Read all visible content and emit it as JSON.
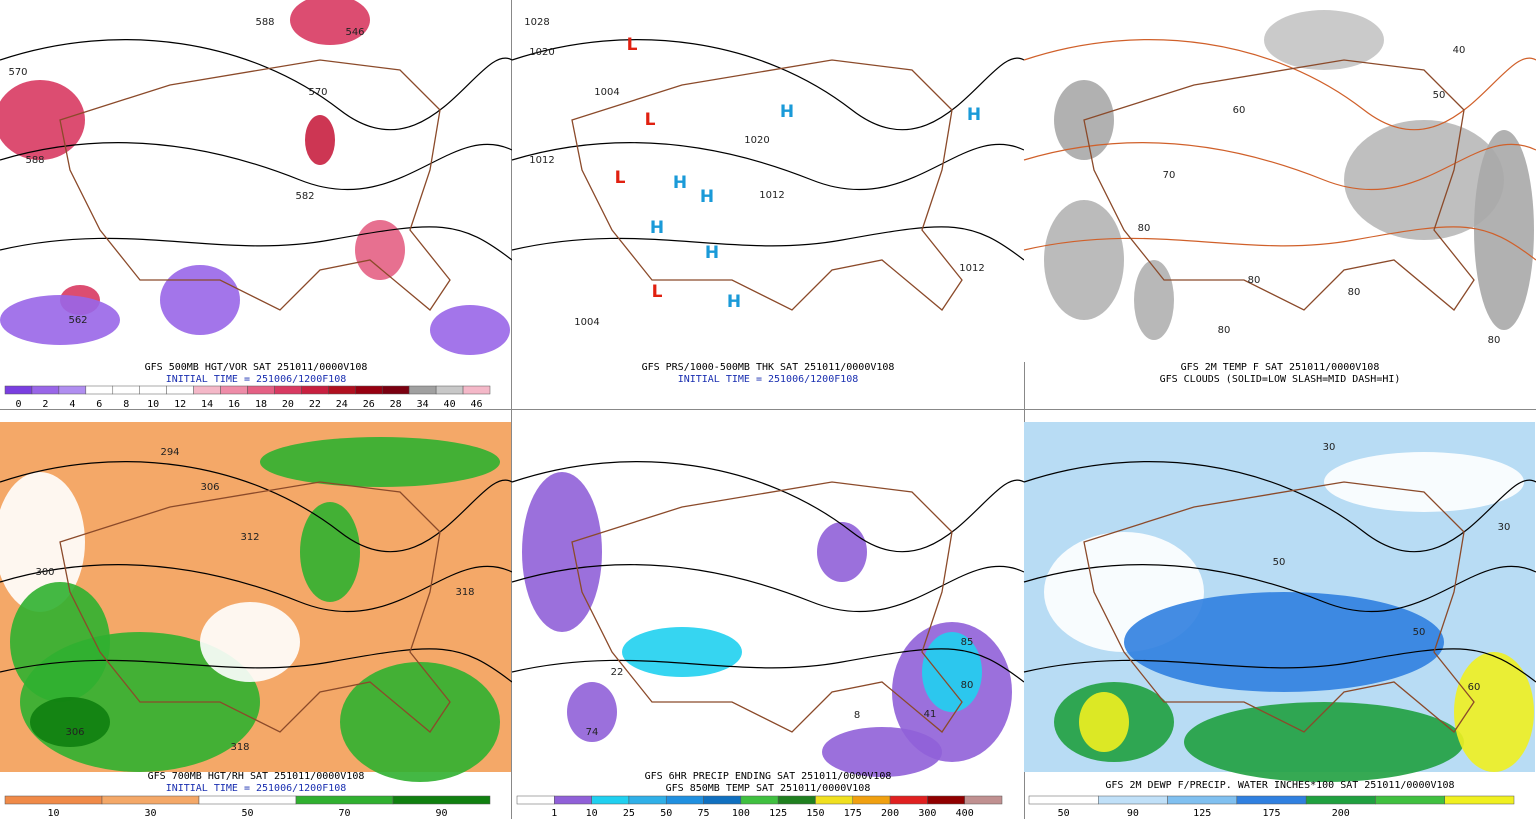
{
  "panels": [
    {
      "captions": [
        {
          "text": "GFS 500MB HGT/VOR SAT 251011/0000V108",
          "color": "#000000"
        },
        {
          "text": "INITIAL TIME = 251006/1200F108",
          "color": "#1a2fb0"
        }
      ],
      "colorbar": {
        "labels": [
          "0",
          "2",
          "4",
          "6",
          "8",
          "10",
          "12",
          "14",
          "16",
          "18",
          "20",
          "22",
          "24",
          "26",
          "28",
          "34",
          "40",
          "46"
        ],
        "colors": [
          "#7a3fe0",
          "#9966e8",
          "#b08ef0",
          "#ffffff",
          "#ffffff",
          "#ffffff",
          "#ffffff",
          "#f4b8c8",
          "#ee8ca8",
          "#e46084",
          "#d83a62",
          "#c82040",
          "#b01020",
          "#960010",
          "#7a0010",
          "#a0a0a0",
          "#c8c8c8",
          "#f4b8c8"
        ]
      },
      "map_labels": [
        "588",
        "546",
        "570",
        "570",
        "582",
        "562",
        "588"
      ]
    },
    {
      "captions": [
        {
          "text": "GFS PRS/1000-500MB THK SAT 251011/0000V108",
          "color": "#000000"
        },
        {
          "text": "INITIAL TIME = 251006/1200F108",
          "color": "#1a2fb0"
        }
      ],
      "map_labels": [
        "1028",
        "1020",
        "1012",
        "1004",
        "1012",
        "1004",
        "1020",
        "1012",
        "L",
        "L",
        "L",
        "L",
        "H",
        "H",
        "H",
        "H",
        "H",
        "H",
        "H"
      ]
    },
    {
      "captions": [
        {
          "text": "GFS 2M TEMP F SAT 251011/0000V108",
          "color": "#000000"
        },
        {
          "text": "GFS CLOUDS (SOLID=LOW SLASH=MID DASH=HI)",
          "color": "#000000"
        }
      ],
      "map_labels": [
        "40",
        "50",
        "60",
        "70",
        "80",
        "80",
        "80",
        "80",
        "80"
      ]
    },
    {
      "captions": [
        {
          "text": "GFS 700MB HGT/RH SAT 251011/0000V108",
          "color": "#000000"
        },
        {
          "text": "INITIAL TIME = 251006/1200F108",
          "color": "#1a2fb0"
        }
      ],
      "colorbar": {
        "labels": [
          "10",
          "30",
          "50",
          "70",
          "90"
        ],
        "colors": [
          "#f08a48",
          "#f4a868",
          "#ffffff",
          "#30b030",
          "#108010"
        ]
      },
      "map_labels": [
        "294",
        "306",
        "312",
        "318",
        "300",
        "306",
        "318"
      ]
    },
    {
      "captions": [
        {
          "text": "GFS 6HR PRECIP ENDING SAT 251011/0000V108",
          "color": "#000000"
        },
        {
          "text": "GFS 850MB TEMP SAT 251011/0000V108",
          "color": "#000000"
        }
      ],
      "colorbar": {
        "labels": [
          "1",
          "10",
          "25",
          "50",
          "75",
          "100",
          "125",
          "150",
          "175",
          "200",
          "300",
          "400"
        ],
        "colors": [
          "#ffffff",
          "#9060d8",
          "#20d0f0",
          "#30b0e8",
          "#2090e0",
          "#1070c0",
          "#40c040",
          "#208020",
          "#f0e020",
          "#f0a010",
          "#e02020",
          "#900000",
          "#c09090"
        ]
      },
      "map_labels": [
        "85",
        "80",
        "41",
        "8",
        "74",
        "22"
      ]
    },
    {
      "captions": [
        {
          "text": "GFS 2M DEWP F/PRECIP. WATER INCHES*100 SAT 251011/0000V108",
          "color": "#000000"
        }
      ],
      "colorbar": {
        "labels": [
          "50",
          "90",
          "125",
          "175",
          "200"
        ],
        "colors": [
          "#ffffff",
          "#c0e0f8",
          "#80c0f0",
          "#3080e0",
          "#20a040",
          "#40c040",
          "#f0f020"
        ]
      },
      "map_labels": [
        "30",
        "50",
        "50",
        "30",
        "60"
      ]
    }
  ]
}
